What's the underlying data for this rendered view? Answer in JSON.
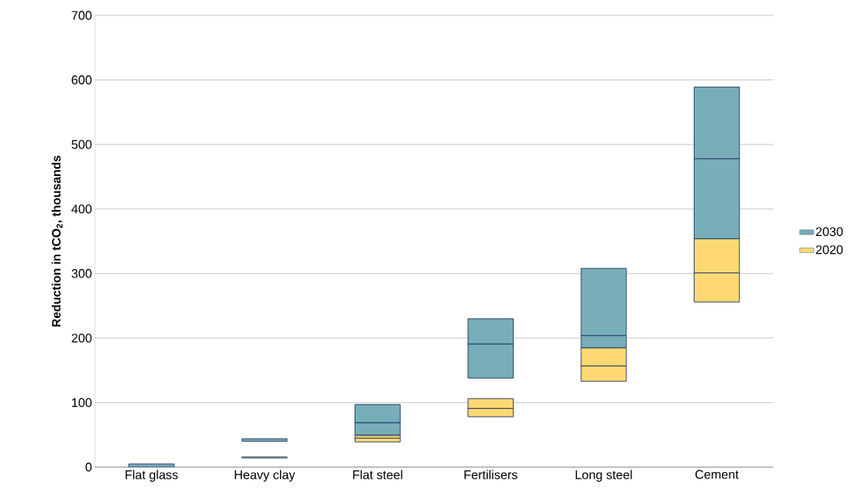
{
  "chart_data": {
    "type": "bar",
    "ylabel": "Reduction in tCO$_{2}$, thousands",
    "categories": [
      "Flat glass",
      "Heavy clay",
      "Flat steel",
      "Fertilisers",
      "Long steel",
      "Cement"
    ],
    "series": [
      {
        "name": "2020",
        "color": "#fed973",
        "base": [
          null,
          14,
          39,
          78,
          133,
          256
        ],
        "values": [
          null,
          2,
          6,
          13,
          24,
          45
        ]
      },
      {
        "color": "#fed973",
        "base": [
          null,
          null,
          45,
          91,
          157,
          301
        ],
        "values": [
          null,
          null,
          4,
          15,
          28,
          53
        ]
      },
      {
        "name": "2030",
        "color": "#77aeb8",
        "base": [
          0,
          40,
          50,
          138,
          185,
          354
        ],
        "values": [
          5,
          4,
          19,
          53,
          19,
          124
        ]
      },
      {
        "color": "#77aeb8",
        "base": [
          null,
          null,
          69,
          191,
          204,
          478
        ],
        "values": [
          null,
          null,
          28,
          39,
          104,
          111
        ]
      }
    ],
    "ylim": [
      0,
      700
    ],
    "yticks": [
      0,
      100,
      200,
      300,
      400,
      500,
      600,
      700
    ],
    "grid": "y",
    "legend": "right"
  }
}
